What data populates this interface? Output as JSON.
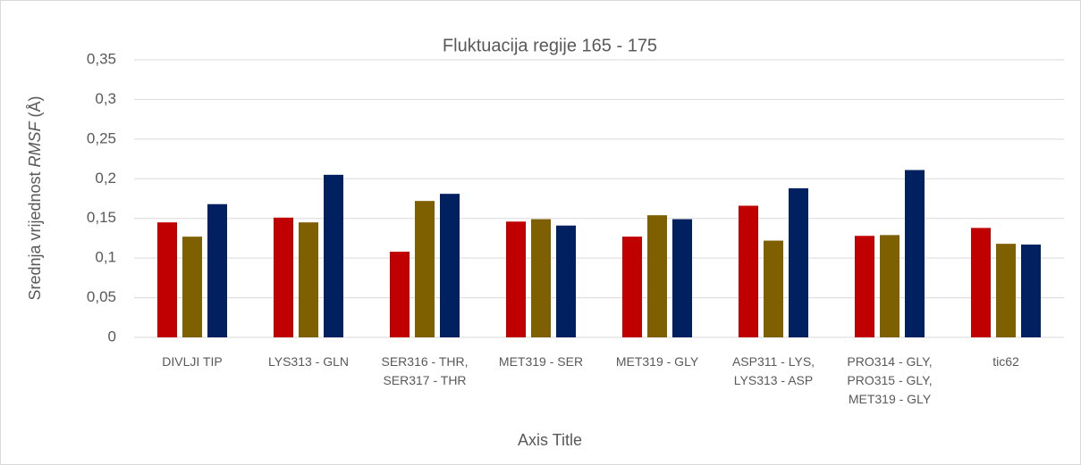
{
  "chart_data": {
    "type": "bar",
    "title": "Fluktuacija regije 165 - 175",
    "ylabel": {
      "before": "Srednja vrijednost ",
      "italic": "RMSF",
      "after": " (Å)"
    },
    "xlabel": "Axis Title",
    "categories": [
      "DIVLJI TIP",
      "LYS313 - GLN",
      "SER316 - THR, SER317 - THR",
      "MET319 - SER",
      "MET319 - GLY",
      "ASP311 - LYS, LYS313 - ASP",
      "PRO314 - GLY, PRO315 - GLY, MET319 - GLY",
      "tic62"
    ],
    "series": [
      {
        "color": "#c00000",
        "values": [
          0.145,
          0.151,
          0.108,
          0.146,
          0.127,
          0.166,
          0.128,
          0.138
        ]
      },
      {
        "color": "#7f6000",
        "values": [
          0.127,
          0.145,
          0.172,
          0.149,
          0.154,
          0.122,
          0.129,
          0.118
        ]
      },
      {
        "color": "#002060",
        "values": [
          0.168,
          0.205,
          0.181,
          0.141,
          0.149,
          0.188,
          0.211,
          0.117
        ]
      }
    ],
    "ylim": [
      0,
      0.35
    ],
    "yticks": [
      0,
      {
        "value": 0.05,
        "label": "0,05"
      },
      {
        "value": 0.1,
        "label": "0,1"
      },
      {
        "value": 0.15,
        "label": "0,15"
      },
      {
        "value": 0.2,
        "label": "0,2"
      },
      {
        "value": 0.25,
        "label": "0,25"
      },
      {
        "value": 0.3,
        "label": "0,3"
      },
      {
        "value": 0.35,
        "label": "0,35"
      }
    ],
    "grid": true
  }
}
